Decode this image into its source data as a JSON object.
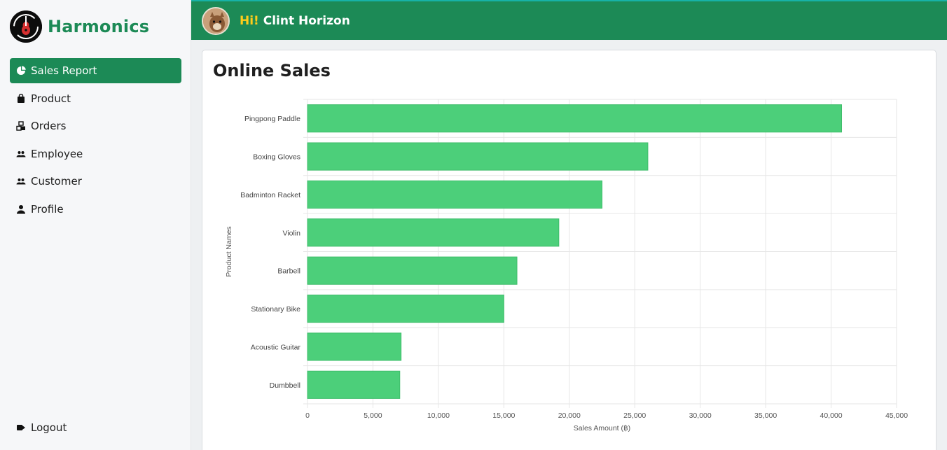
{
  "brand": {
    "name": "Harmonics"
  },
  "sidebar": {
    "items": [
      {
        "label": "Sales Report",
        "icon": "pie-chart-icon",
        "active": true
      },
      {
        "label": "Product",
        "icon": "bag-icon",
        "active": false
      },
      {
        "label": "Orders",
        "icon": "boxes-icon",
        "active": false
      },
      {
        "label": "Employee",
        "icon": "people-icon",
        "active": false
      },
      {
        "label": "Customer",
        "icon": "people-icon",
        "active": false
      },
      {
        "label": "Profile",
        "icon": "person-icon",
        "active": false
      }
    ],
    "logout_label": "Logout"
  },
  "header": {
    "greeting_prefix": "Hi!",
    "user_name": "Clint Horizon"
  },
  "main": {
    "title": "Online Sales"
  },
  "colors": {
    "brand": "#1c8a56",
    "bar": "#4ccf7a",
    "accent_yellow": "#ffcc1a"
  },
  "chart_data": {
    "type": "bar",
    "orientation": "horizontal",
    "categories": [
      "Pingpong Paddle",
      "Boxing Gloves",
      "Badminton Racket",
      "Violin",
      "Barbell",
      "Stationary Bike",
      "Acoustic Guitar",
      "Dumbbell"
    ],
    "values": [
      40800,
      26000,
      22500,
      19200,
      16000,
      15000,
      7150,
      7050
    ],
    "xlabel": "Sales Amount (฿)",
    "ylabel": "Product Names",
    "xlim": [
      0,
      45000
    ],
    "xticks": [
      "0",
      "5,000",
      "10,000",
      "15,000",
      "20,000",
      "25,000",
      "30,000",
      "35,000",
      "40,000",
      "45,000"
    ],
    "grid": true
  }
}
